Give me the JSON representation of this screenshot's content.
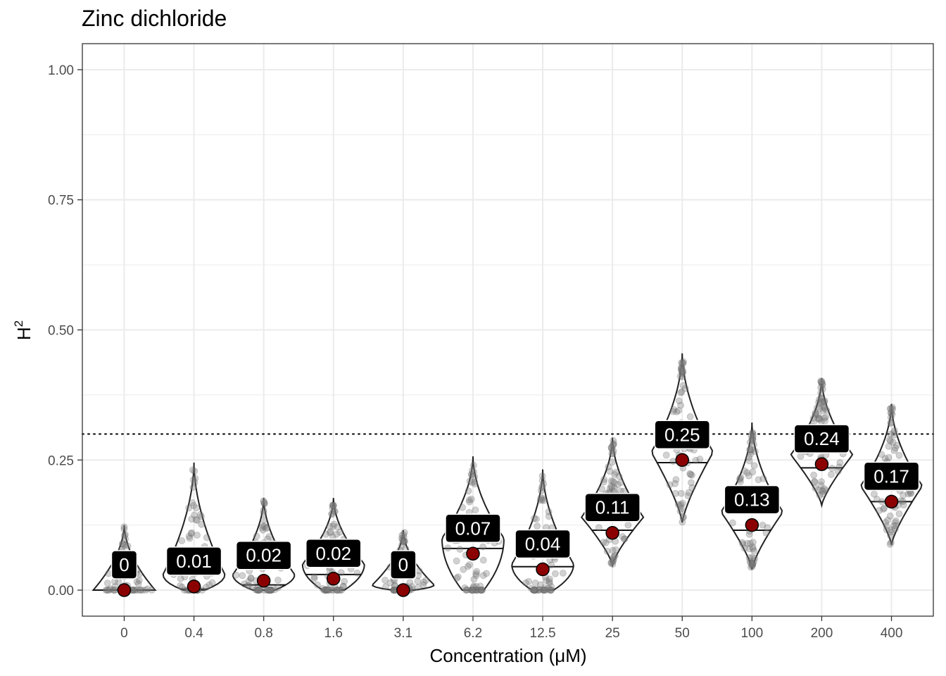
{
  "chart_data": {
    "type": "violin",
    "title": "Zinc dichloride",
    "xlabel": "Concentration (μM)",
    "ylabel_base": "H",
    "ylabel_superscript": "2",
    "ylim": [
      -0.05,
      1.05
    ],
    "yticks": [
      0,
      0.25,
      0.5,
      0.75,
      1.0
    ],
    "ytick_labels": [
      "0.00",
      "0.25",
      "0.50",
      "0.75",
      "1.00"
    ],
    "threshold_line": 0.3,
    "categories": [
      "0",
      "0.4",
      "0.8",
      "1.6",
      "3.1",
      "6.2",
      "12.5",
      "25",
      "50",
      "100",
      "200",
      "400"
    ],
    "mean_labels": [
      "0",
      "0.01",
      "0.02",
      "0.02",
      "0",
      "0.07",
      "0.04",
      "0.11",
      "0.25",
      "0.13",
      "0.24",
      "0.17"
    ],
    "means": [
      0.0,
      0.007,
      0.018,
      0.022,
      0.0,
      0.07,
      0.04,
      0.11,
      0.25,
      0.125,
      0.242,
      0.17
    ],
    "medians": [
      0.0,
      0.002,
      0.01,
      0.03,
      0.0,
      0.08,
      0.045,
      0.115,
      0.245,
      0.115,
      0.235,
      0.17
    ],
    "mins": [
      0.0,
      0.0,
      0.0,
      0.0,
      0.0,
      0.0,
      0.0,
      0.048,
      0.13,
      0.04,
      0.163,
      0.087
    ],
    "maxs": [
      0.125,
      0.245,
      0.177,
      0.177,
      0.115,
      0.257,
      0.232,
      0.293,
      0.455,
      0.322,
      0.407,
      0.358
    ],
    "modes": [
      0.0,
      0.03,
      0.03,
      0.05,
      0.01,
      0.1,
      0.05,
      0.14,
      0.265,
      0.15,
      0.26,
      0.2
    ],
    "colors": {
      "violin_stroke": "#222222",
      "points": "#7f7f7f",
      "mean_point": "#8b0000",
      "label_bg": "#000000",
      "label_text": "#ffffff",
      "grid": "#ebebeb",
      "panel_border": "#333333"
    }
  }
}
